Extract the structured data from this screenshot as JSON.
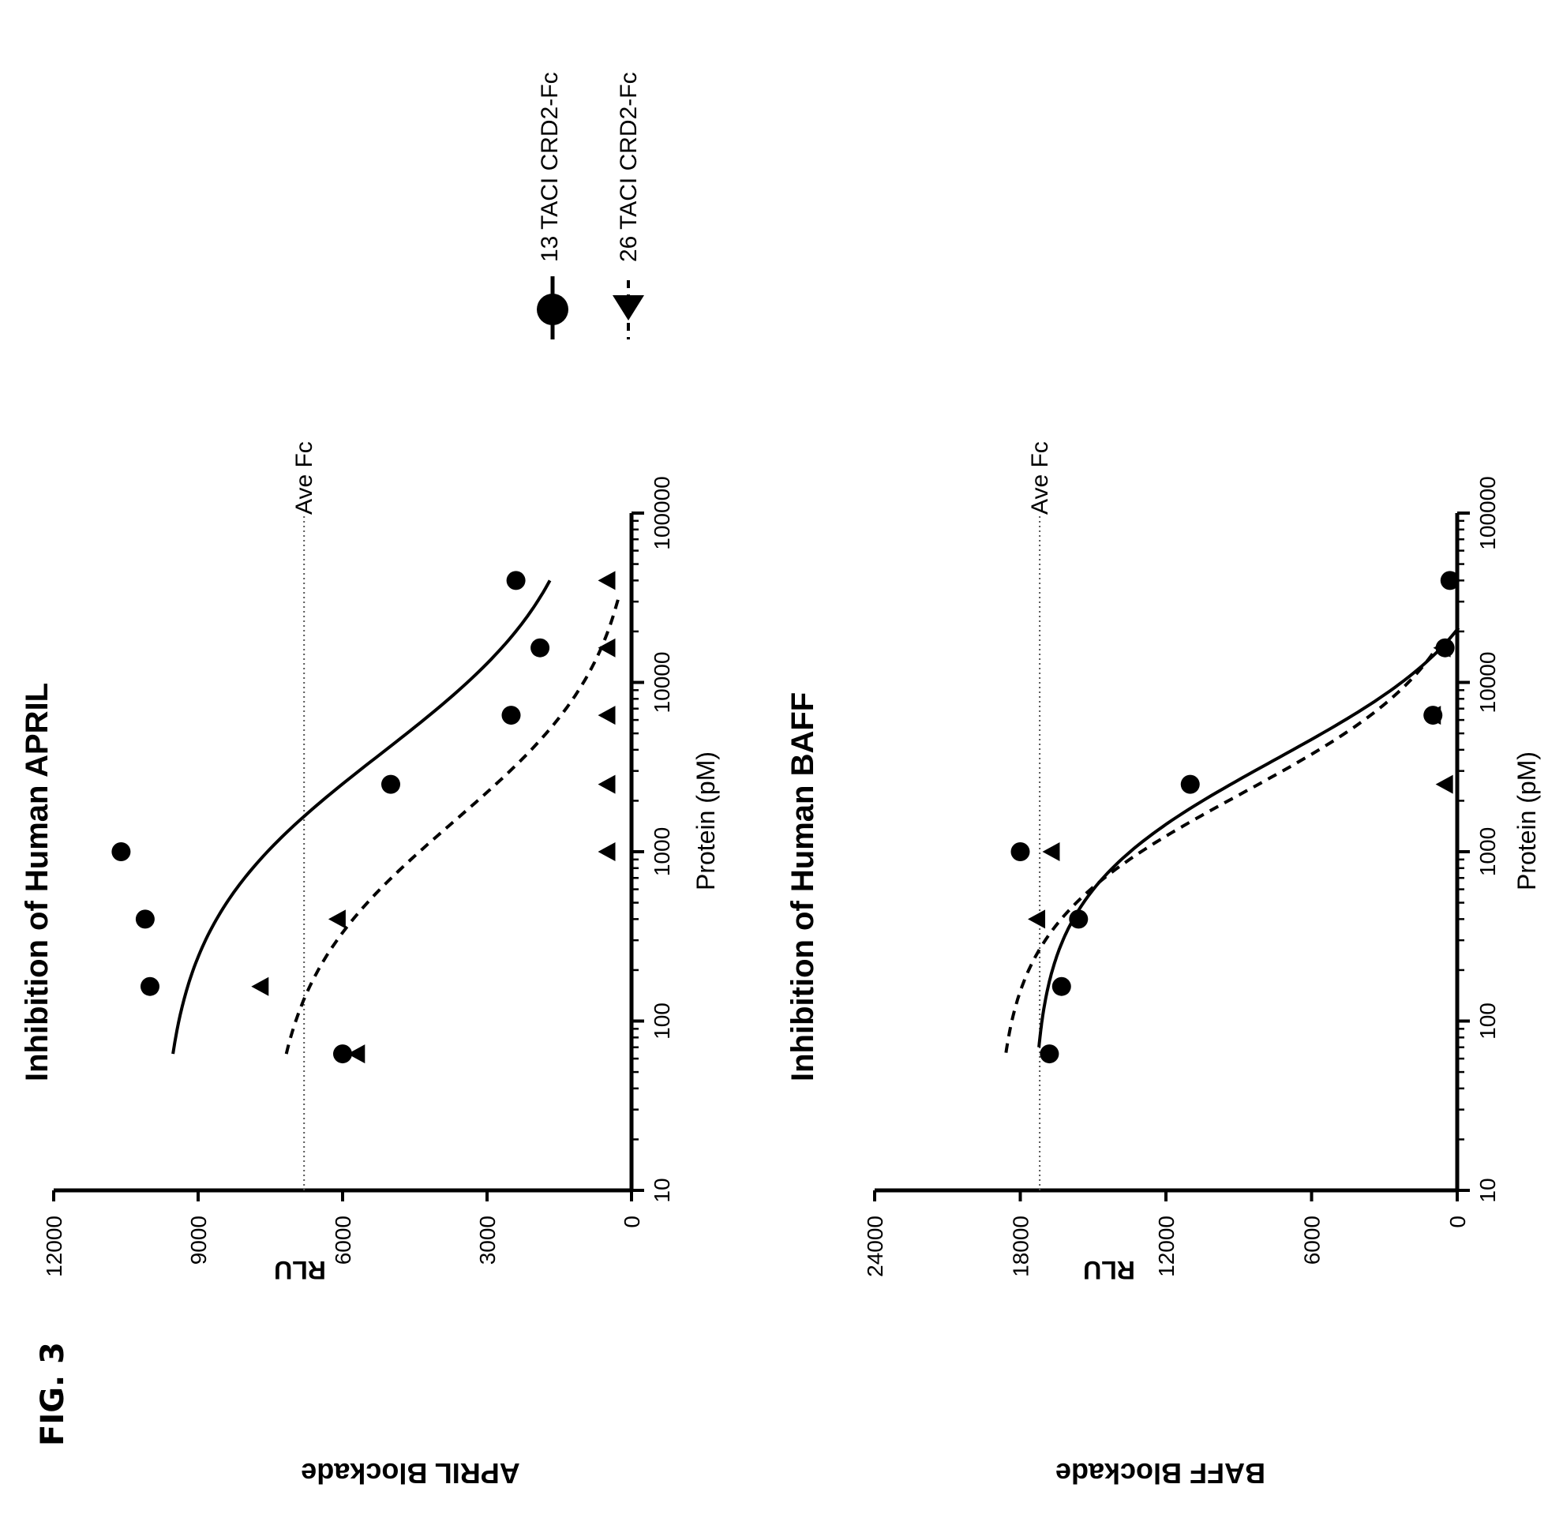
{
  "figure_label": "FIG. 3",
  "legend": [
    {
      "label": "13 TACI CRD2-Fc",
      "marker": "circle",
      "line": "solid"
    },
    {
      "label": "26 TACI CRD2-Fc",
      "marker": "triangle",
      "line": "dashed"
    }
  ],
  "chart_data": [
    {
      "type": "scatter",
      "title": "Inhibition of Human APRIL",
      "side_label": "APRIL Blockade",
      "ylabel": "RLU",
      "xlabel": "Protein (pM)",
      "xscale": "log",
      "xlim": [
        10,
        100000
      ],
      "ylim": [
        0,
        12000
      ],
      "xticks": [
        10,
        100,
        1000,
        10000,
        100000
      ],
      "xtick_labels": [
        "10",
        "100",
        "1000",
        "10000",
        "100000"
      ],
      "yticks": [
        0,
        3000,
        6000,
        9000,
        12000
      ],
      "ytick_labels": [
        "0",
        "3000",
        "6000",
        "9000",
        "12000"
      ],
      "reference_line": {
        "label": "Ave Fc",
        "y": 6800
      },
      "series": [
        {
          "name": "13 TACI CRD2-Fc",
          "marker": "circle",
          "line": "solid",
          "x": [
            64,
            160,
            400,
            1000,
            2500,
            6400,
            16000,
            40000
          ],
          "y": [
            6000,
            10000,
            10100,
            10600,
            5000,
            2500,
            1900,
            2400
          ],
          "fit": {
            "top": 9800,
            "bottom": 600,
            "ec50": 3800,
            "hill": 0.85,
            "x_start": 64,
            "x_end": 40000
          }
        },
        {
          "name": "26 TACI CRD2-Fc",
          "marker": "triangle",
          "line": "dashed",
          "x": [
            64,
            160,
            400,
            1000,
            2500,
            6400,
            16000,
            40000
          ],
          "y": [
            5700,
            7700,
            6100,
            500,
            500,
            500,
            500,
            500
          ],
          "fit": {
            "top": 7600,
            "bottom": -200,
            "ec50": 1500,
            "hill": 0.9,
            "x_start": 64,
            "x_end": 32000
          }
        }
      ]
    },
    {
      "type": "scatter",
      "title": "Inhibition of Human BAFF",
      "side_label": "BAFF Blockade",
      "ylabel": "RLU",
      "xlabel": "Protein (pM)",
      "xscale": "log",
      "xlim": [
        10,
        100000
      ],
      "ylim": [
        0,
        24000
      ],
      "xticks": [
        10,
        100,
        1000,
        10000,
        100000
      ],
      "xtick_labels": [
        "10",
        "100",
        "1000",
        "10000",
        "100000"
      ],
      "yticks": [
        0,
        6000,
        12000,
        18000,
        24000
      ],
      "ytick_labels": [
        "0",
        "6000",
        "12000",
        "18000",
        "24000"
      ],
      "reference_line": {
        "label": "Ave Fc",
        "y": 17200
      },
      "series": [
        {
          "name": "13 TACI CRD2-Fc",
          "marker": "circle",
          "line": "solid",
          "x": [
            64,
            160,
            400,
            1000,
            2500,
            6400,
            16000,
            40000
          ],
          "y": [
            16800,
            16300,
            15600,
            18000,
            11000,
            1000,
            500,
            300
          ],
          "fit": {
            "top": 17500,
            "bottom": -2500,
            "ec50": 3500,
            "hill": 1.1,
            "x_start": 70,
            "x_end": 21000
          }
        },
        {
          "name": "26 TACI CRD2-Fc",
          "marker": "triangle",
          "line": "dashed",
          "x": [
            400,
            1000,
            2500,
            6400,
            16000
          ],
          "y": [
            17300,
            16700,
            500,
            1000,
            600
          ],
          "fit": {
            "top": 19000,
            "bottom": -1200,
            "ec50": 2200,
            "hill": 1.1,
            "x_start": 65,
            "x_end": 15000
          }
        }
      ]
    }
  ]
}
